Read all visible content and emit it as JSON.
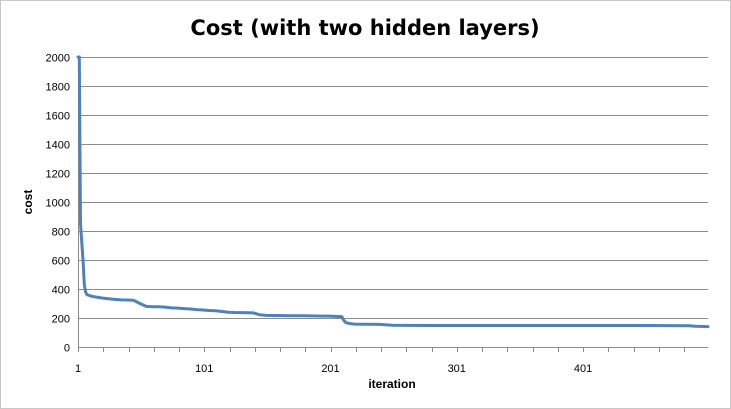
{
  "chart_data": {
    "type": "line",
    "title": "Cost (with two hidden layers)",
    "xlabel": "iteration",
    "ylabel": "cost",
    "xlim": [
      1,
      500
    ],
    "ylim": [
      0,
      2000
    ],
    "grid": true,
    "legend": "none",
    "x_ticks": [
      1,
      101,
      201,
      301,
      401
    ],
    "y_ticks": [
      0,
      200,
      400,
      600,
      800,
      1000,
      1200,
      1400,
      1600,
      1800,
      2000
    ],
    "series": [
      {
        "color": "#4f81bd",
        "x": [
          1,
          2,
          3,
          4,
          5,
          6,
          7,
          8,
          9,
          10,
          12,
          15,
          20,
          25,
          30,
          35,
          40,
          45,
          46,
          50,
          55,
          60,
          65,
          70,
          75,
          80,
          85,
          90,
          95,
          100,
          105,
          110,
          115,
          120,
          125,
          130,
          135,
          140,
          145,
          150,
          160,
          170,
          180,
          190,
          200,
          210,
          211,
          213,
          216,
          220,
          230,
          240,
          250,
          260,
          280,
          300,
          350,
          400,
          450,
          485,
          490,
          500
        ],
        "y": [
          2000,
          2000,
          850,
          720,
          590,
          430,
          380,
          362,
          358,
          355,
          350,
          345,
          338,
          333,
          328,
          325,
          324,
          322,
          318,
          300,
          280,
          278,
          277,
          275,
          270,
          268,
          265,
          262,
          258,
          255,
          252,
          250,
          245,
          240,
          238,
          237,
          236,
          235,
          222,
          218,
          217,
          216,
          215,
          214,
          213,
          210,
          190,
          168,
          162,
          158,
          157,
          156,
          150,
          149,
          148,
          148,
          148,
          148,
          148,
          147,
          143,
          141
        ]
      }
    ]
  }
}
